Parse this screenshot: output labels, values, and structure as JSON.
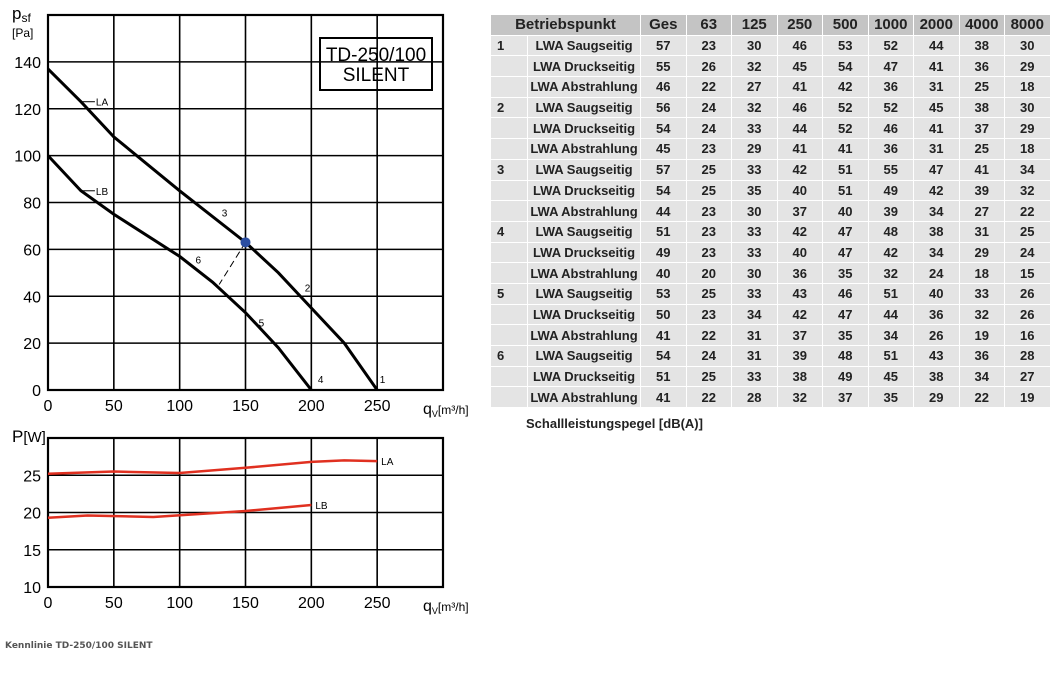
{
  "chart_data": [
    {
      "type": "line",
      "box_label": [
        "TD-250/100",
        "SILENT"
      ],
      "y_label": {
        "symbol": "p",
        "subscript": "sf",
        "unit": "[Pa]"
      },
      "x_label": {
        "symbol": "q",
        "subscript": "V",
        "unit": "[m³/h]"
      },
      "xlim": [
        0,
        300
      ],
      "xticks": [
        0,
        50,
        100,
        150,
        200,
        250
      ],
      "ylim": [
        0,
        160
      ],
      "yticks": [
        0,
        20,
        40,
        60,
        80,
        100,
        120,
        140
      ],
      "grid": true,
      "series": [
        {
          "name": "LA",
          "color": "#000000",
          "x": [
            0,
            25,
            50,
            100,
            150,
            175,
            200,
            225,
            240,
            250
          ],
          "values": [
            137,
            123,
            108,
            85,
            63,
            50,
            35,
            20,
            8,
            0
          ]
        },
        {
          "name": "LB",
          "color": "#000000",
          "x": [
            0,
            25,
            50,
            100,
            125,
            150,
            175,
            200
          ],
          "values": [
            100,
            85,
            75,
            57,
            46,
            33,
            18,
            0
          ]
        }
      ],
      "operating_point": {
        "x": 150,
        "y": 63,
        "color": "#2b4ea2",
        "guide_x": 130,
        "guide_y": 45
      },
      "point_labels": [
        {
          "text": "1",
          "x": 252,
          "y": 3
        },
        {
          "text": "2",
          "x": 195,
          "y": 42
        },
        {
          "text": "3",
          "x": 132,
          "y": 74
        },
        {
          "text": "4",
          "x": 205,
          "y": 3
        },
        {
          "text": "5",
          "x": 160,
          "y": 27
        },
        {
          "text": "6",
          "x": 112,
          "y": 54
        }
      ]
    },
    {
      "type": "line",
      "y_label": {
        "symbol": "P",
        "unit": "[W]"
      },
      "x_label": {
        "symbol": "q",
        "subscript": "V",
        "unit": "[m³/h]"
      },
      "xlim": [
        0,
        300
      ],
      "xticks": [
        0,
        50,
        100,
        150,
        200,
        250
      ],
      "ylim": [
        10,
        30
      ],
      "yticks": [
        10,
        15,
        20,
        25
      ],
      "grid": true,
      "axis_color": "#e03020",
      "series": [
        {
          "name": "LA",
          "color": "#e03020",
          "x": [
            0,
            50,
            100,
            150,
            200,
            225,
            250
          ],
          "values": [
            25.2,
            25.5,
            25.3,
            26,
            26.8,
            27,
            26.9
          ]
        },
        {
          "name": "LB",
          "color": "#e03020",
          "x": [
            0,
            30,
            80,
            150,
            200
          ],
          "values": [
            19.3,
            19.6,
            19.4,
            20.2,
            21
          ]
        }
      ]
    }
  ],
  "table": {
    "columns": [
      "Betriebspunkt",
      "Ges",
      "63",
      "125",
      "250",
      "500",
      "1000",
      "2000",
      "4000",
      "8000"
    ],
    "groups": [
      {
        "id": "1",
        "rows": [
          {
            "label": "LWA Saugseitig",
            "values": [
              57,
              23,
              30,
              46,
              53,
              52,
              44,
              38,
              30
            ]
          },
          {
            "label": "LWA Druckseitig",
            "values": [
              55,
              26,
              32,
              45,
              54,
              47,
              41,
              36,
              29
            ]
          },
          {
            "label": "LWA Abstrahlung",
            "values": [
              46,
              22,
              27,
              41,
              42,
              36,
              31,
              25,
              18
            ]
          }
        ]
      },
      {
        "id": "2",
        "rows": [
          {
            "label": "LWA Saugseitig",
            "values": [
              56,
              24,
              32,
              46,
              52,
              52,
              45,
              38,
              30
            ]
          },
          {
            "label": "LWA Druckseitig",
            "values": [
              54,
              24,
              33,
              44,
              52,
              46,
              41,
              37,
              29
            ]
          },
          {
            "label": "LWA Abstrahlung",
            "values": [
              45,
              23,
              29,
              41,
              41,
              36,
              31,
              25,
              18
            ]
          }
        ]
      },
      {
        "id": "3",
        "rows": [
          {
            "label": "LWA Saugseitig",
            "values": [
              57,
              25,
              33,
              42,
              51,
              55,
              47,
              41,
              34
            ]
          },
          {
            "label": "LWA Druckseitig",
            "values": [
              54,
              25,
              35,
              40,
              51,
              49,
              42,
              39,
              32
            ]
          },
          {
            "label": "LWA Abstrahlung",
            "values": [
              44,
              23,
              30,
              37,
              40,
              39,
              34,
              27,
              22
            ]
          }
        ]
      },
      {
        "id": "4",
        "rows": [
          {
            "label": "LWA Saugseitig",
            "values": [
              51,
              23,
              33,
              42,
              47,
              48,
              38,
              31,
              25
            ]
          },
          {
            "label": "LWA Druckseitig",
            "values": [
              49,
              23,
              33,
              40,
              47,
              42,
              34,
              29,
              24
            ]
          },
          {
            "label": "LWA Abstrahlung",
            "values": [
              40,
              20,
              30,
              36,
              35,
              32,
              24,
              18,
              15
            ]
          }
        ]
      },
      {
        "id": "5",
        "rows": [
          {
            "label": "LWA Saugseitig",
            "values": [
              53,
              25,
              33,
              43,
              46,
              51,
              40,
              33,
              26
            ]
          },
          {
            "label": "LWA Druckseitig",
            "values": [
              50,
              23,
              34,
              42,
              47,
              44,
              36,
              32,
              26
            ]
          },
          {
            "label": "LWA Abstrahlung",
            "values": [
              41,
              22,
              31,
              37,
              35,
              34,
              26,
              19,
              16
            ]
          }
        ]
      },
      {
        "id": "6",
        "rows": [
          {
            "label": "LWA Saugseitig",
            "values": [
              54,
              24,
              31,
              39,
              48,
              51,
              43,
              36,
              28
            ]
          },
          {
            "label": "LWA Druckseitig",
            "values": [
              51,
              25,
              33,
              38,
              49,
              45,
              38,
              34,
              27
            ]
          },
          {
            "label": "LWA Abstrahlung",
            "values": [
              41,
              22,
              28,
              32,
              37,
              35,
              29,
              22,
              19
            ]
          }
        ]
      }
    ],
    "caption": "Schallleistungspegel [dB(A)]"
  },
  "footer": "Kennlinie TD-250/100 SILENT"
}
